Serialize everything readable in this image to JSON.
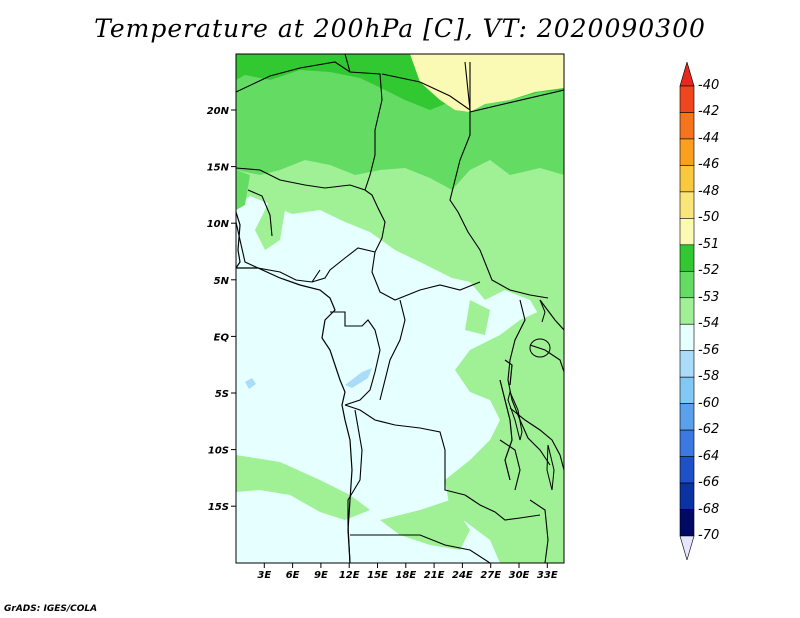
{
  "title": "Temperature at 200hPa [C], VT: 2020090300",
  "footer": "GrADS: IGES/COLA",
  "axes": {
    "lon_ticks": [
      "3E",
      "6E",
      "9E",
      "12E",
      "15E",
      "18E",
      "21E",
      "24E",
      "27E",
      "30E",
      "33E"
    ],
    "lat_ticks": [
      "20N",
      "15N",
      "10N",
      "5N",
      "EQ",
      "5S",
      "10S",
      "15S"
    ]
  },
  "legend": {
    "labels": [
      "-40",
      "-42",
      "-44",
      "-46",
      "-48",
      "-50",
      "-51",
      "-52",
      "-53",
      "-54",
      "-56",
      "-58",
      "-60",
      "-62",
      "-64",
      "-66",
      "-68",
      "-70"
    ],
    "colors": [
      "#e8281e",
      "#f0461e",
      "#f5741e",
      "#faa01e",
      "#fac83c",
      "#fae678",
      "#fafab4",
      "#32c832",
      "#64dc64",
      "#a0f096",
      "#e6ffff",
      "#aadcfa",
      "#82c8f5",
      "#5aa0eb",
      "#3c78e1",
      "#1e50c8",
      "#0a32a0",
      "#000a64",
      "#e6e6ff"
    ]
  },
  "colors": {
    "ocean_land_base": "#e6ffff",
    "band_53": "#a0f096",
    "band_52": "#64dc64",
    "band_51": "#32c832",
    "band_50": "#fafab4",
    "band_56": "#aadcfa"
  }
}
